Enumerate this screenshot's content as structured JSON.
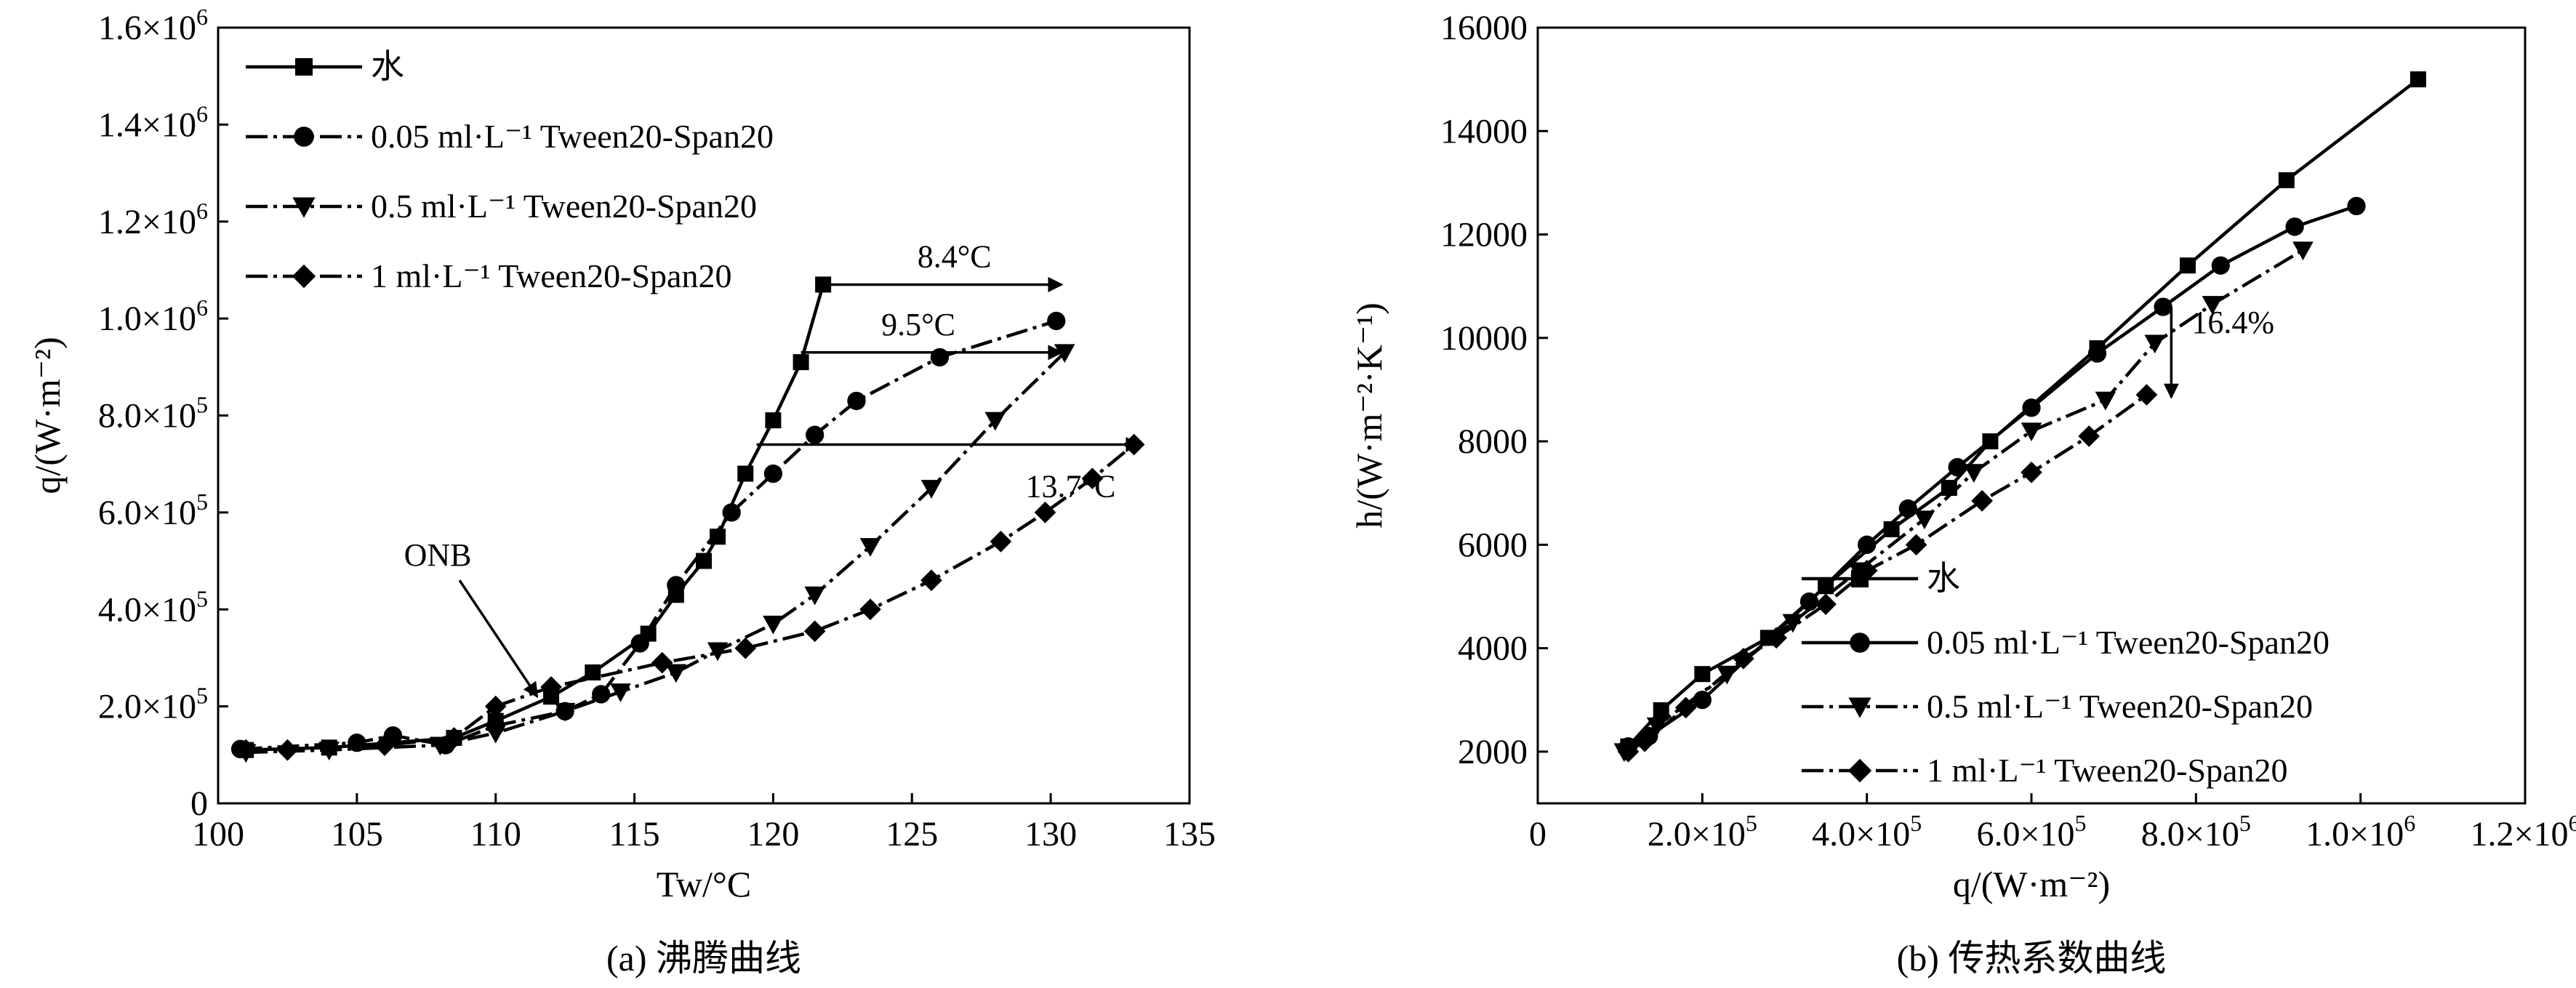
{
  "chart_data": [
    {
      "panel": "a",
      "type": "line",
      "caption": "(a) 沸腾曲线",
      "xlabel": "Tw/°C",
      "ylabel": "q/(W·m⁻²)",
      "xlim": [
        100,
        135
      ],
      "ylim": [
        0,
        1600000
      ],
      "x_ticks": [
        100,
        105,
        110,
        115,
        120,
        125,
        130,
        135
      ],
      "y_ticks": [
        0,
        200000,
        400000,
        600000,
        800000,
        1000000,
        1200000,
        1400000,
        1600000
      ],
      "y_tick_labels": [
        "0",
        "2.0×10⁵",
        "4.0×10⁵",
        "6.0×10⁵",
        "8.0×10⁵",
        "1.0×10⁶",
        "1.2×10⁶",
        "1.4×10⁶",
        "1.6×10⁶"
      ],
      "grid": false,
      "legend_placement": "top-left",
      "series": [
        {
          "name": "水",
          "marker": "square",
          "line": "solid",
          "x": [
            101.0,
            104.0,
            108.5,
            110.0,
            112.0,
            113.5,
            115.5,
            116.5,
            117.5,
            118.0,
            119.0,
            120.0,
            121.0,
            121.8
          ],
          "y": [
            110000,
            115000,
            135000,
            170000,
            220000,
            270000,
            350000,
            430000,
            500000,
            550000,
            680000,
            790000,
            910000,
            1070000
          ]
        },
        {
          "name": "0.05 ml·L⁻¹ Tween20-Span20",
          "marker": "circle",
          "line": "dashdot",
          "x": [
            100.8,
            105.0,
            106.3,
            108.2,
            110.0,
            112.5,
            113.8,
            115.2,
            116.5,
            118.5,
            120.0,
            121.5,
            123.0,
            126.0,
            130.2
          ],
          "y": [
            112000,
            125000,
            140000,
            120000,
            160000,
            190000,
            225000,
            330000,
            450000,
            600000,
            680000,
            760000,
            830000,
            920000,
            995000
          ]
        },
        {
          "name": "0.5 ml·L⁻¹ Tween20-Span20",
          "marker": "triangle-down",
          "line": "dashdot",
          "x": [
            101.0,
            104.0,
            108.0,
            110.0,
            112.5,
            114.5,
            116.5,
            118.0,
            120.0,
            121.5,
            123.5,
            125.7,
            128.0,
            130.5
          ],
          "y": [
            105000,
            110000,
            120000,
            145000,
            190000,
            230000,
            270000,
            315000,
            370000,
            430000,
            530000,
            650000,
            790000,
            930000
          ]
        },
        {
          "name": "1 ml·L⁻¹ Tween20-Span20",
          "marker": "diamond",
          "line": "dashdot",
          "x": [
            101.0,
            102.5,
            106.0,
            108.5,
            110.0,
            112.0,
            116.0,
            119.0,
            121.5,
            123.5,
            125.7,
            128.2,
            129.8,
            131.5,
            133.0
          ],
          "y": [
            110000,
            110000,
            120000,
            135000,
            200000,
            240000,
            290000,
            320000,
            355000,
            400000,
            460000,
            540000,
            600000,
            670000,
            740000
          ]
        }
      ],
      "annotations": [
        {
          "text": "ONB",
          "type": "arrow",
          "from": [
            108.7,
            460000
          ],
          "to": [
            111.5,
            220000
          ]
        },
        {
          "text": "8.4°C",
          "type": "arrow-h",
          "x_from": 121.8,
          "x_to": 130.4,
          "y": 1070000
        },
        {
          "text": "9.5°C",
          "type": "arrow-h",
          "x_from": 121.0,
          "x_to": 130.4,
          "y": 930000
        },
        {
          "text": "13.7°C",
          "type": "arrow-h",
          "x_from": 119.4,
          "x_to": 133.2,
          "y": 740000
        }
      ]
    },
    {
      "panel": "b",
      "type": "line",
      "caption": "(b) 传热系数曲线",
      "xlabel": "q/(W·m⁻²)",
      "ylabel": "h/(W·m⁻²·K⁻¹)",
      "xlim": [
        0,
        1200000
      ],
      "ylim": [
        1000,
        16000
      ],
      "x_ticks": [
        0,
        200000,
        400000,
        600000,
        800000,
        1000000,
        1200000
      ],
      "x_tick_labels": [
        "0",
        "2.0×10⁵",
        "4.0×10⁵",
        "6.0×10⁵",
        "8.0×10⁵",
        "1.0×10⁶",
        "1.2×10⁶"
      ],
      "y_ticks": [
        2000,
        4000,
        6000,
        8000,
        10000,
        12000,
        14000,
        16000
      ],
      "y_tick_labels": [
        "2000",
        "4000",
        "6000",
        "8000",
        "10000",
        "12000",
        "14000",
        "16000"
      ],
      "grid": false,
      "legend_placement": "bottom-right",
      "series": [
        {
          "name": "水",
          "marker": "square",
          "line": "solid",
          "x": [
            110000,
            150000,
            200000,
            280000,
            350000,
            430000,
            500000,
            550000,
            680000,
            790000,
            910000,
            1070000
          ],
          "y": [
            2100,
            2800,
            3500,
            4200,
            5200,
            6300,
            7100,
            8000,
            9800,
            11400,
            13050,
            15000
          ]
        },
        {
          "name": "0.05 ml·L⁻¹ Tween20-Span20",
          "marker": "circle",
          "line": "solid",
          "x": [
            110000,
            135000,
            200000,
            330000,
            400000,
            450000,
            510000,
            600000,
            680000,
            760000,
            830000,
            920000,
            995000
          ],
          "y": [
            2100,
            2300,
            3000,
            4900,
            6000,
            6700,
            7500,
            8650,
            9700,
            10600,
            11400,
            12150,
            12550
          ]
        },
        {
          "name": "0.5 ml·L⁻¹ Tween20-Span20",
          "marker": "triangle-down",
          "line": "dashdot",
          "x": [
            105000,
            145000,
            230000,
            310000,
            390000,
            470000,
            530000,
            600000,
            690000,
            750000,
            820000,
            930000
          ],
          "y": [
            2000,
            2500,
            3500,
            4500,
            5500,
            6500,
            7400,
            8200,
            8800,
            9900,
            10650,
            11700
          ]
        },
        {
          "name": "1 ml·L⁻¹ Tween20-Span20",
          "marker": "diamond",
          "line": "dashdot",
          "x": [
            110000,
            130000,
            180000,
            250000,
            290000,
            350000,
            400000,
            460000,
            540000,
            600000,
            670000,
            740000
          ],
          "y": [
            2000,
            2200,
            2850,
            3800,
            4200,
            4850,
            5500,
            6000,
            6850,
            7400,
            8100,
            8900
          ]
        }
      ],
      "annotations": [
        {
          "text": "16.4%",
          "type": "arrow-v",
          "x": 770000,
          "y_from": 10600,
          "y_to": 8850
        }
      ]
    }
  ]
}
